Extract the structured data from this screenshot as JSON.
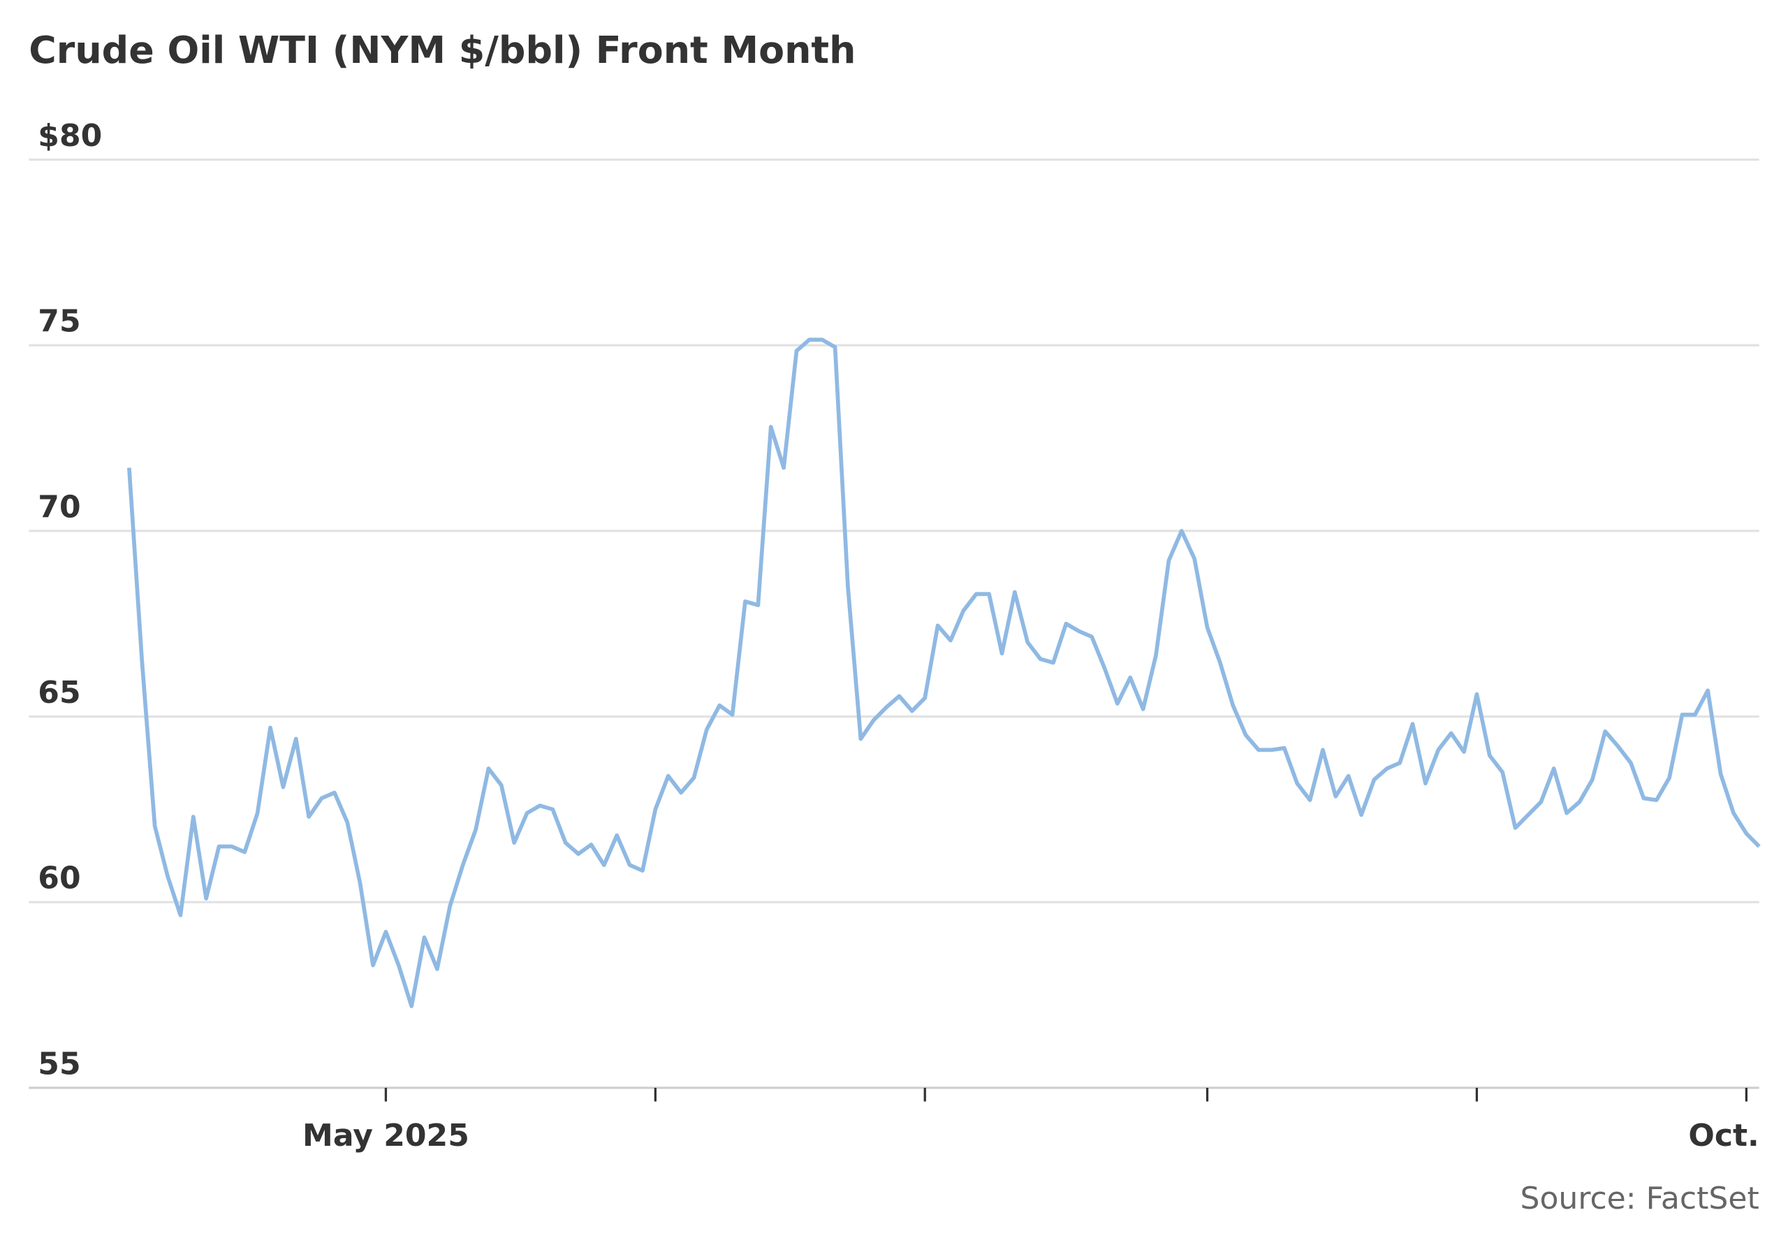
{
  "chart_data": {
    "type": "line",
    "title": "Crude Oil WTI (NYM $/bbl) Front Month",
    "source": "Source: FactSet",
    "categories": [
      null,
      null,
      null,
      null,
      null,
      null,
      null,
      null,
      null,
      null,
      null,
      null,
      null,
      null,
      null,
      null,
      null,
      null,
      null,
      null,
      "May 2025",
      null,
      null,
      null,
      null,
      null,
      null,
      null,
      null,
      null,
      null,
      null,
      null,
      null,
      null,
      null,
      null,
      null,
      null,
      null,
      null,
      null,
      null,
      null,
      null,
      null,
      null,
      null,
      null,
      null,
      null,
      null,
      null,
      null,
      null,
      null,
      null,
      null,
      null,
      null,
      null,
      null,
      null,
      null,
      null,
      null,
      null,
      null,
      null,
      null,
      null,
      null,
      null,
      null,
      null,
      null,
      null,
      null,
      null,
      null,
      null,
      null,
      null,
      null,
      null,
      null,
      null,
      null,
      null,
      null,
      null,
      null,
      null,
      null,
      null,
      null,
      null,
      null,
      null,
      null,
      null,
      null,
      null,
      null,
      null,
      null,
      null,
      null,
      null,
      null,
      null,
      null,
      null,
      null,
      null,
      null,
      null,
      null,
      null,
      null,
      null,
      null,
      null,
      null,
      null,
      null,
      "Oct.",
      null
    ],
    "xticks": [
      20,
      41,
      62,
      84,
      105,
      126
    ],
    "series": [
      {
        "color": "#8fb9e3",
        "values": [
          71.7,
          66.5,
          62.05,
          60.7,
          59.65,
          62.3,
          60.1,
          61.5,
          61.5,
          61.35,
          62.4,
          64.7,
          63.1,
          64.4,
          62.3,
          62.8,
          62.95,
          62.15,
          60.5,
          58.3,
          59.2,
          58.3,
          57.2,
          59.05,
          58.2,
          59.9,
          61.0,
          61.95,
          63.6,
          63.15,
          61.6,
          62.4,
          62.6,
          62.5,
          61.6,
          61.3,
          61.55,
          61.0,
          61.8,
          61.0,
          60.85,
          62.5,
          63.4,
          62.95,
          63.35,
          64.65,
          65.3,
          65.05,
          68.1,
          68.0,
          72.8,
          71.7,
          74.85,
          75.15,
          75.15,
          74.95,
          68.5,
          64.4,
          64.9,
          65.25,
          65.55,
          65.15,
          65.5,
          67.45,
          67.05,
          67.85,
          68.3,
          68.3,
          66.7,
          68.35,
          67.0,
          66.55,
          66.45,
          67.5,
          67.3,
          67.15,
          66.3,
          65.35,
          66.05,
          65.2,
          66.65,
          69.2,
          70.0,
          69.25,
          67.4,
          66.45,
          65.3,
          64.5,
          64.1,
          64.1,
          64.15,
          63.2,
          62.75,
          64.1,
          62.85,
          63.4,
          62.35,
          63.3,
          63.6,
          63.75,
          64.8,
          63.2,
          64.1,
          64.55,
          64.05,
          65.6,
          63.95,
          63.5,
          62.0,
          62.35,
          62.7,
          63.6,
          62.4,
          62.7,
          63.3,
          64.6,
          64.2,
          63.75,
          62.8,
          62.75,
          63.35,
          65.05,
          65.05,
          65.7,
          63.45,
          62.4,
          61.85,
          61.5
        ]
      }
    ],
    "ylim": [
      55,
      80
    ],
    "yticks": [
      55,
      60,
      65,
      70,
      75,
      {
        "value": 80,
        "label": "$80"
      }
    ],
    "grid": true
  }
}
